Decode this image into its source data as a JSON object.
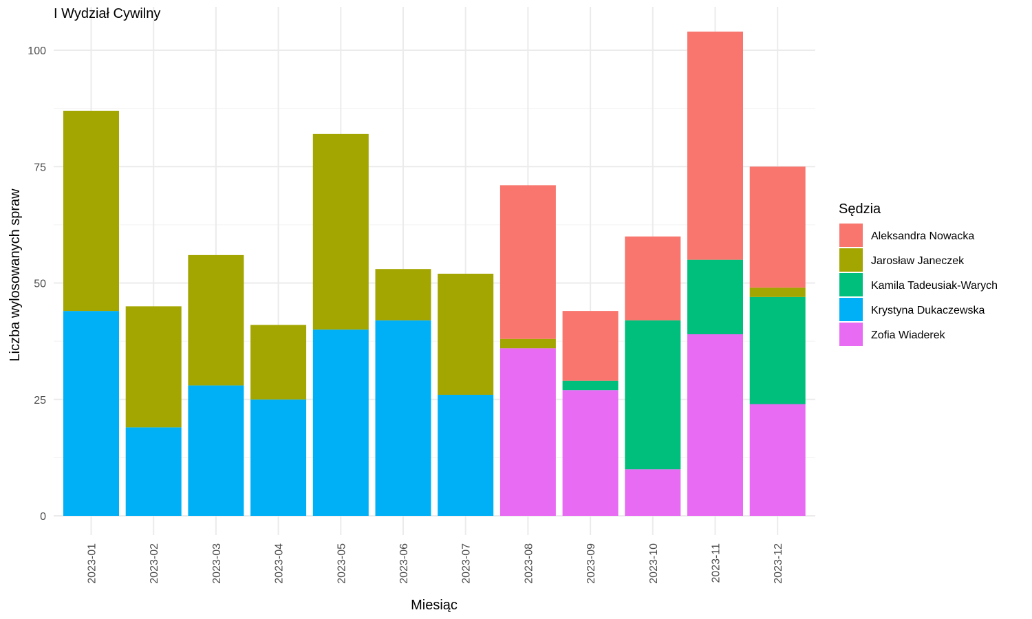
{
  "chart_data": {
    "type": "bar",
    "stacked": true,
    "title": "I Wydział Cywilny",
    "xlabel": "Miesiąc",
    "ylabel": "Liczba wylosowanych spraw",
    "ylim": [
      0,
      104
    ],
    "yticks": [
      0,
      25,
      50,
      75,
      100
    ],
    "grid": true,
    "legend_title": "Sędzia",
    "legend_position": "right",
    "categories": [
      "2023-01",
      "2023-02",
      "2023-03",
      "2023-04",
      "2023-05",
      "2023-06",
      "2023-07",
      "2023-08",
      "2023-09",
      "2023-10",
      "2023-11",
      "2023-12"
    ],
    "stack_order_bottom_to_top": [
      "Zofia Wiaderek",
      "Krystyna Dukaczewska",
      "Kamila Tadeusiak-Warych",
      "Jarosław Janeczek",
      "Aleksandra Nowacka"
    ],
    "series": [
      {
        "name": "Aleksandra Nowacka",
        "color": "#F8766D",
        "values": [
          0,
          0,
          0,
          0,
          0,
          0,
          0,
          33,
          15,
          18,
          49,
          26
        ]
      },
      {
        "name": "Jarosław Janeczek",
        "color": "#A3A500",
        "values": [
          43,
          26,
          28,
          16,
          42,
          11,
          26,
          2,
          0,
          0,
          0,
          2
        ]
      },
      {
        "name": "Kamila Tadeusiak-Warych",
        "color": "#00BF7D",
        "values": [
          0,
          0,
          0,
          0,
          0,
          0,
          0,
          0,
          2,
          32,
          16,
          23
        ]
      },
      {
        "name": "Krystyna Dukaczewska",
        "color": "#00B0F6",
        "values": [
          44,
          19,
          28,
          25,
          40,
          42,
          26,
          0,
          0,
          0,
          0,
          0
        ]
      },
      {
        "name": "Zofia Wiaderek",
        "color": "#E76BF3",
        "values": [
          0,
          0,
          0,
          0,
          0,
          0,
          0,
          36,
          27,
          10,
          39,
          24
        ]
      }
    ]
  }
}
